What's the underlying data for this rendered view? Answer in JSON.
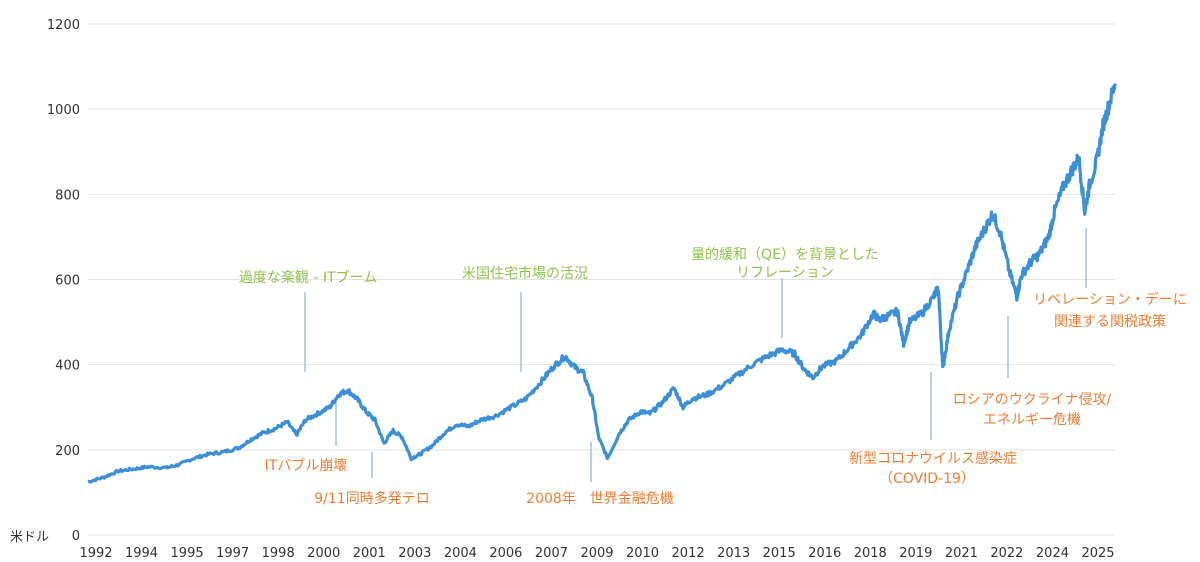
{
  "chart_data": {
    "type": "line",
    "title": "",
    "ylabel": "米ドル",
    "xlabel": "",
    "ylim": [
      0,
      1200
    ],
    "yticks": [
      0,
      200,
      400,
      600,
      800,
      1000,
      1200
    ],
    "grid": true,
    "x_tick_labels": [
      "1992",
      "1994",
      "1995",
      "1997",
      "1998",
      "2000",
      "2001",
      "2003",
      "2004",
      "2006",
      "2007",
      "2009",
      "2010",
      "2012",
      "2013",
      "2015",
      "2016",
      "2018",
      "2019",
      "2021",
      "2022",
      "2024",
      "2025"
    ],
    "line_color": "#3a8fd6",
    "series": [
      {
        "points": [
          [
            1992.0,
            125
          ],
          [
            1992.5,
            135
          ],
          [
            1993.0,
            150
          ],
          [
            1993.5,
            155
          ],
          [
            1994.0,
            160
          ],
          [
            1994.6,
            158
          ],
          [
            1995.0,
            165
          ],
          [
            1995.5,
            180
          ],
          [
            1996.0,
            190
          ],
          [
            1996.5,
            195
          ],
          [
            1997.0,
            205
          ],
          [
            1997.4,
            225
          ],
          [
            1997.8,
            240
          ],
          [
            1998.2,
            250
          ],
          [
            1998.6,
            265
          ],
          [
            1998.9,
            235
          ],
          [
            1999.2,
            270
          ],
          [
            1999.6,
            285
          ],
          [
            2000.0,
            300
          ],
          [
            2000.3,
            330
          ],
          [
            2000.6,
            340
          ],
          [
            2000.9,
            320
          ],
          [
            2001.2,
            290
          ],
          [
            2001.5,
            270
          ],
          [
            2001.8,
            215
          ],
          [
            2002.1,
            245
          ],
          [
            2002.4,
            230
          ],
          [
            2002.7,
            180
          ],
          [
            2003.0,
            190
          ],
          [
            2003.4,
            210
          ],
          [
            2003.8,
            240
          ],
          [
            2004.2,
            260
          ],
          [
            2004.6,
            255
          ],
          [
            2005.0,
            270
          ],
          [
            2005.5,
            280
          ],
          [
            2006.0,
            300
          ],
          [
            2006.5,
            320
          ],
          [
            2007.0,
            360
          ],
          [
            2007.4,
            395
          ],
          [
            2007.8,
            420
          ],
          [
            2008.1,
            395
          ],
          [
            2008.4,
            380
          ],
          [
            2008.7,
            320
          ],
          [
            2008.9,
            230
          ],
          [
            2009.2,
            180
          ],
          [
            2009.6,
            240
          ],
          [
            2009.9,
            270
          ],
          [
            2010.3,
            290
          ],
          [
            2010.6,
            285
          ],
          [
            2011.0,
            310
          ],
          [
            2011.4,
            345
          ],
          [
            2011.7,
            300
          ],
          [
            2012.0,
            320
          ],
          [
            2012.5,
            330
          ],
          [
            2013.0,
            350
          ],
          [
            2013.5,
            375
          ],
          [
            2014.0,
            400
          ],
          [
            2014.5,
            420
          ],
          [
            2015.0,
            435
          ],
          [
            2015.4,
            425
          ],
          [
            2015.7,
            390
          ],
          [
            2016.0,
            370
          ],
          [
            2016.3,
            395
          ],
          [
            2016.8,
            410
          ],
          [
            2017.2,
            440
          ],
          [
            2017.6,
            470
          ],
          [
            2018.0,
            520
          ],
          [
            2018.2,
            505
          ],
          [
            2018.5,
            515
          ],
          [
            2018.8,
            525
          ],
          [
            2019.0,
            450
          ],
          [
            2019.2,
            500
          ],
          [
            2019.6,
            520
          ],
          [
            2020.0,
            560
          ],
          [
            2020.15,
            580
          ],
          [
            2020.3,
            390
          ],
          [
            2020.5,
            480
          ],
          [
            2020.8,
            560
          ],
          [
            2021.1,
            620
          ],
          [
            2021.4,
            680
          ],
          [
            2021.7,
            720
          ],
          [
            2021.95,
            755
          ],
          [
            2022.2,
            710
          ],
          [
            2022.5,
            620
          ],
          [
            2022.75,
            560
          ],
          [
            2022.9,
            610
          ],
          [
            2023.2,
            640
          ],
          [
            2023.5,
            660
          ],
          [
            2023.8,
            700
          ],
          [
            2024.0,
            760
          ],
          [
            2024.3,
            820
          ],
          [
            2024.6,
            860
          ],
          [
            2024.8,
            885
          ],
          [
            2025.0,
            760
          ],
          [
            2025.15,
            820
          ],
          [
            2025.4,
            880
          ],
          [
            2025.6,
            960
          ],
          [
            2025.8,
            1010
          ],
          [
            2026.0,
            1060
          ]
        ]
      }
    ],
    "annotations": [
      {
        "text": "過度な楽観 - ITブーム",
        "color": "#8bc34a"
      },
      {
        "text": "米国住宅市場の活況",
        "color": "#8bc34a"
      },
      {
        "text": "量的緩和（QE）を背景とした",
        "color": "#8bc34a"
      },
      {
        "text": "リフレーション",
        "color": "#8bc34a"
      },
      {
        "text": "ITバブル崩壊",
        "color": "#f07c30"
      },
      {
        "text": "9/11同時多発テロ",
        "color": "#f07c30"
      },
      {
        "text": "2008年　世界金融危機",
        "color": "#f07c30"
      },
      {
        "text": "新型コロナウイルス感染症",
        "color": "#f07c30"
      },
      {
        "text": "（COVID-19）",
        "color": "#f07c30"
      },
      {
        "text": "ロシアのウクライナ侵攻/",
        "color": "#f07c30"
      },
      {
        "text": "エネルギー危機",
        "color": "#f07c30"
      },
      {
        "text": "リベレーション・デーに",
        "color": "#f07c30"
      },
      {
        "text": "関連する関税政策",
        "color": "#f07c30"
      }
    ]
  }
}
